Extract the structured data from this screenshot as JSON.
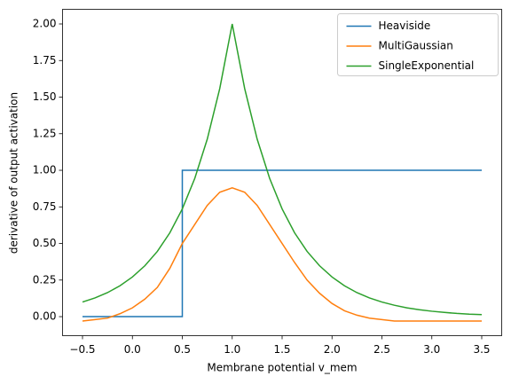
{
  "chart_data": {
    "type": "line",
    "xlabel": "Membrane potential v_mem",
    "ylabel": "derivative of output activation",
    "xlim": [
      -0.7,
      3.7
    ],
    "ylim": [
      -0.13,
      2.1
    ],
    "xticks": [
      {
        "value": -0.5,
        "label": "−0.5"
      },
      {
        "value": 0,
        "label": "0.0"
      },
      0.5,
      {
        "value": 1,
        "label": "1.0"
      },
      1.5,
      {
        "value": 2,
        "label": "2.0"
      },
      2.5,
      {
        "value": 3,
        "label": "3.0"
      },
      3.5
    ],
    "yticks": [
      {
        "value": 0,
        "label": "0.00"
      },
      {
        "value": 0.25,
        "label": "0.25"
      },
      {
        "value": 0.5,
        "label": "0.50"
      },
      {
        "value": 0.75,
        "label": "0.75"
      },
      {
        "value": 1,
        "label": "1.00"
      },
      {
        "value": 1.25,
        "label": "1.25"
      },
      {
        "value": 1.5,
        "label": "1.50"
      },
      {
        "value": 1.75,
        "label": "1.75"
      },
      {
        "value": 2,
        "label": "2.00"
      }
    ],
    "grid": false,
    "legend": "upper right",
    "series": [
      {
        "name": "Heaviside",
        "color": "#1f77b4",
        "x": [
          -0.5,
          0.5,
          0.5,
          3.5
        ],
        "values": [
          0,
          0,
          1,
          1
        ]
      },
      {
        "name": "MultiGaussian",
        "color": "#ff7f0e",
        "x": [
          -0.5,
          -0.375,
          -0.25,
          -0.125,
          0,
          0.125,
          0.25,
          0.375,
          0.5,
          0.625,
          0.75,
          0.875,
          1,
          1.125,
          1.25,
          1.375,
          1.5,
          1.625,
          1.75,
          1.875,
          2,
          2.125,
          2.25,
          2.375,
          2.5,
          2.625,
          2.75,
          2.875,
          3,
          3.125,
          3.25,
          3.375,
          3.5
        ],
        "values": [
          -0.03,
          -0.02,
          -0.01,
          0.02,
          0.06,
          0.12,
          0.2,
          0.33,
          0.5,
          0.63,
          0.76,
          0.85,
          0.88,
          0.85,
          0.76,
          0.63,
          0.5,
          0.37,
          0.25,
          0.16,
          0.09,
          0.04,
          0.01,
          -0.01,
          -0.02,
          -0.03,
          -0.03,
          -0.03,
          -0.03,
          -0.03,
          -0.03,
          -0.03,
          -0.03
        ]
      },
      {
        "name": "SingleExponential",
        "color": "#2ca02c",
        "x": [
          -0.5,
          -0.375,
          -0.25,
          -0.125,
          0,
          0.125,
          0.25,
          0.375,
          0.5,
          0.625,
          0.75,
          0.875,
          1,
          1.125,
          1.25,
          1.375,
          1.5,
          1.625,
          1.75,
          1.875,
          2,
          2.125,
          2.25,
          2.375,
          2.5,
          2.625,
          2.75,
          2.875,
          3,
          3.125,
          3.25,
          3.375,
          3.5
        ],
        "values": [
          0.1,
          0.128,
          0.164,
          0.211,
          0.271,
          0.348,
          0.446,
          0.573,
          0.736,
          0.945,
          1.213,
          1.558,
          2.0,
          1.558,
          1.213,
          0.945,
          0.736,
          0.573,
          0.446,
          0.348,
          0.271,
          0.211,
          0.164,
          0.128,
          0.1,
          0.078,
          0.06,
          0.047,
          0.037,
          0.029,
          0.022,
          0.017,
          0.014
        ]
      }
    ]
  }
}
